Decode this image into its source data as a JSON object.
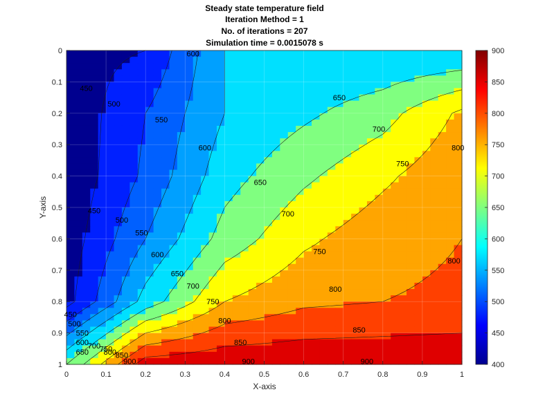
{
  "chart_data": {
    "type": "heatmap",
    "subtype": "filled-contour",
    "title_lines": [
      "Steady state temperature field",
      "Iteration Method = 1",
      "No. of iterations = 207",
      "Simulation time = 0.0015078 s"
    ],
    "xlabel": "X-axis",
    "ylabel": "Y-axis",
    "xlim": [
      0,
      1
    ],
    "ylim": [
      0,
      1
    ],
    "y_reversed": true,
    "grid": true,
    "x_ticks": [
      "0",
      "0.1",
      "0.2",
      "0.3",
      "0.4",
      "0.5",
      "0.6",
      "0.7",
      "0.8",
      "0.9",
      "1"
    ],
    "y_ticks": [
      "0",
      "0.1",
      "0.2",
      "0.3",
      "0.4",
      "0.5",
      "0.6",
      "0.7",
      "0.8",
      "0.9",
      "1"
    ],
    "x_grid": [
      0,
      0.2,
      0.4,
      0.6,
      0.8,
      1.0
    ],
    "y_grid": [
      0,
      0.2,
      0.4,
      0.6,
      0.8,
      1.0
    ],
    "values": [
      [
        430,
        450,
        600,
        600,
        600,
        600
      ],
      [
        410,
        500,
        600,
        640,
        680,
        760
      ],
      [
        410,
        510,
        630,
        690,
        740,
        790
      ],
      [
        420,
        550,
        670,
        740,
        780,
        800
      ],
      [
        430,
        620,
        750,
        790,
        800,
        810
      ],
      [
        650,
        880,
        890,
        890,
        890,
        890
      ]
    ],
    "contour_levels": [
      450,
      500,
      550,
      600,
      650,
      700,
      750,
      800,
      850,
      900
    ],
    "colorbar": {
      "min": 400,
      "max": 900,
      "ticks": [
        "400",
        "450",
        "500",
        "550",
        "600",
        "650",
        "700",
        "750",
        "800",
        "850",
        "900"
      ],
      "colormap": "jet",
      "band_colors": [
        "#00008f",
        "#0020ff",
        "#0060ff",
        "#00a0ff",
        "#00e0ff",
        "#80ff80",
        "#ffff00",
        "#ffa500",
        "#ff4000",
        "#df0000"
      ]
    },
    "contour_labels": [
      {
        "text": "600",
        "x": 0.32,
        "y": 0.01
      },
      {
        "text": "650",
        "x": 0.69,
        "y": 0.15
      },
      {
        "text": "700",
        "x": 0.79,
        "y": 0.25
      },
      {
        "text": "750",
        "x": 0.85,
        "y": 0.36
      },
      {
        "text": "800",
        "x": 0.99,
        "y": 0.31
      },
      {
        "text": "450",
        "x": 0.05,
        "y": 0.12
      },
      {
        "text": "500",
        "x": 0.12,
        "y": 0.17
      },
      {
        "text": "550",
        "x": 0.24,
        "y": 0.22
      },
      {
        "text": "600",
        "x": 0.35,
        "y": 0.31
      },
      {
        "text": "650",
        "x": 0.49,
        "y": 0.42
      },
      {
        "text": "700",
        "x": 0.56,
        "y": 0.52
      },
      {
        "text": "450",
        "x": 0.07,
        "y": 0.51
      },
      {
        "text": "500",
        "x": 0.14,
        "y": 0.54
      },
      {
        "text": "550",
        "x": 0.19,
        "y": 0.58
      },
      {
        "text": "600",
        "x": 0.23,
        "y": 0.65
      },
      {
        "text": "650",
        "x": 0.28,
        "y": 0.71
      },
      {
        "text": "700",
        "x": 0.32,
        "y": 0.75
      },
      {
        "text": "750",
        "x": 0.37,
        "y": 0.8
      },
      {
        "text": "750",
        "x": 0.64,
        "y": 0.64
      },
      {
        "text": "800",
        "x": 0.4,
        "y": 0.86
      },
      {
        "text": "800",
        "x": 0.68,
        "y": 0.76
      },
      {
        "text": "800",
        "x": 0.98,
        "y": 0.67
      },
      {
        "text": "850",
        "x": 0.44,
        "y": 0.93
      },
      {
        "text": "850",
        "x": 0.74,
        "y": 0.89
      },
      {
        "text": "900",
        "x": 0.46,
        "y": 0.99
      },
      {
        "text": "900",
        "x": 0.76,
        "y": 0.99
      },
      {
        "text": "900",
        "x": 0.16,
        "y": 0.99
      },
      {
        "text": "850",
        "x": 0.14,
        "y": 0.97
      },
      {
        "text": "800",
        "x": 0.11,
        "y": 0.96
      },
      {
        "text": "750",
        "x": 0.1,
        "y": 0.95
      },
      {
        "text": "700",
        "x": 0.07,
        "y": 0.94
      },
      {
        "text": "650",
        "x": 0.04,
        "y": 0.96
      },
      {
        "text": "600",
        "x": 0.04,
        "y": 0.93
      },
      {
        "text": "550",
        "x": 0.04,
        "y": 0.9
      },
      {
        "text": "500",
        "x": 0.02,
        "y": 0.87
      },
      {
        "text": "450",
        "x": 0.01,
        "y": 0.84
      }
    ]
  }
}
